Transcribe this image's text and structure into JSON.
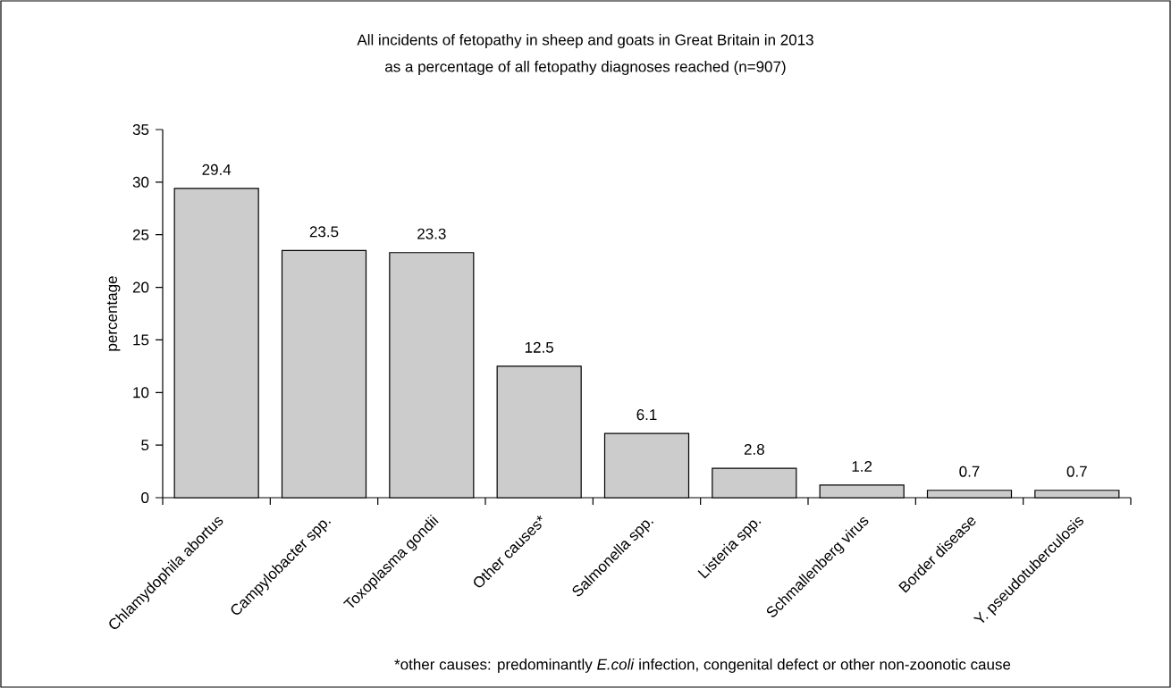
{
  "chart_data": {
    "type": "bar",
    "title": "All incidents of fetopathy in sheep and goats in Great Britain in 2013",
    "subtitle": "as a percentage of all fetopathy diagnoses reached (n=907)",
    "ylabel": "percentage",
    "categories": [
      "Chlamydophila abortus",
      "Campylobacter spp.",
      "Toxoplasma gondii",
      "Other causes*",
      "Salmonella spp.",
      "Listeria spp.",
      "Schmallenberg virus",
      "Border disease",
      "Y. pseudotuberculosis"
    ],
    "values": [
      29.4,
      23.5,
      23.3,
      12.5,
      6.1,
      2.8,
      1.2,
      0.7,
      0.7
    ],
    "color": "#cccccc",
    "ylim": [
      0,
      35
    ],
    "yticks": [
      0,
      5,
      10,
      15,
      20,
      25,
      30,
      35
    ],
    "data_labels": true,
    "annotations": [
      "*other causes: predominantly *E.coli* infection, congenital defect or other non-zoonotic cause"
    ]
  }
}
